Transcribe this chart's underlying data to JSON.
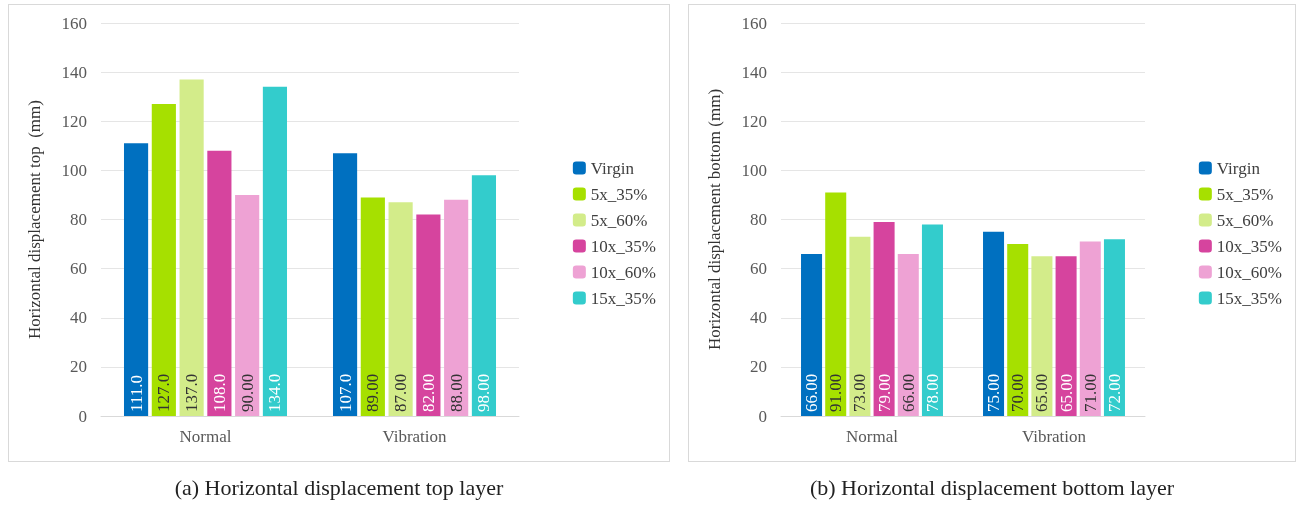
{
  "chart_data": [
    {
      "type": "bar",
      "title": "(a) Horizontal displacement top layer",
      "ylabel": "Horizontal displacement top  (mm)",
      "categories": [
        "Normal",
        "Vibration"
      ],
      "ylim": [
        0,
        160
      ],
      "yticks": [
        0,
        20,
        40,
        60,
        80,
        100,
        120,
        140,
        160
      ],
      "grid": "y",
      "legend": "right",
      "series": [
        {
          "name": "Virgin",
          "color": "#0070c0",
          "values": [
            111,
            107
          ],
          "value_labels": [
            "111.0",
            "107.0"
          ]
        },
        {
          "name": "5x_35%",
          "color": "#a6e000",
          "values": [
            127,
            89
          ],
          "value_labels": [
            "127.0",
            "89.00"
          ]
        },
        {
          "name": "5x_60%",
          "color": "#d3ec8a",
          "values": [
            137,
            87
          ],
          "value_labels": [
            "137.0",
            "87.00"
          ]
        },
        {
          "name": "10x_35%",
          "color": "#d6449e",
          "values": [
            108,
            82
          ],
          "value_labels": [
            "108.0",
            "82.00"
          ]
        },
        {
          "name": "10x_60%",
          "color": "#eea2d4",
          "values": [
            90,
            88
          ],
          "value_labels": [
            "90.00",
            "88.00"
          ]
        },
        {
          "name": "15x_35%",
          "color": "#33cccc",
          "values": [
            134,
            98
          ],
          "value_labels": [
            "134.0",
            "98.00"
          ]
        }
      ]
    },
    {
      "type": "bar",
      "title": "(b) Horizontal displacement bottom layer",
      "ylabel": "Horizontal displacement bottom (mm)",
      "categories": [
        "Normal",
        "Vibration"
      ],
      "ylim": [
        0,
        160
      ],
      "yticks": [
        0,
        20,
        40,
        60,
        80,
        100,
        120,
        140,
        160
      ],
      "grid": "y",
      "legend": "right",
      "series": [
        {
          "name": "Virgin",
          "color": "#0070c0",
          "values": [
            66,
            75
          ],
          "value_labels": [
            "66.00",
            "75.00"
          ]
        },
        {
          "name": "5x_35%",
          "color": "#a6e000",
          "values": [
            91,
            70
          ],
          "value_labels": [
            "91.00",
            "70.00"
          ]
        },
        {
          "name": "5x_60%",
          "color": "#d3ec8a",
          "values": [
            73,
            65
          ],
          "value_labels": [
            "73.00",
            "65.00"
          ]
        },
        {
          "name": "10x_35%",
          "color": "#d6449e",
          "values": [
            79,
            65
          ],
          "value_labels": [
            "79.00",
            "65.00"
          ]
        },
        {
          "name": "10x_60%",
          "color": "#eea2d4",
          "values": [
            66,
            71
          ],
          "value_labels": [
            "66.00",
            "71.00"
          ]
        },
        {
          "name": "15x_35%",
          "color": "#33cccc",
          "values": [
            78,
            72
          ],
          "value_labels": [
            "78.00",
            "72.00"
          ]
        }
      ]
    }
  ]
}
